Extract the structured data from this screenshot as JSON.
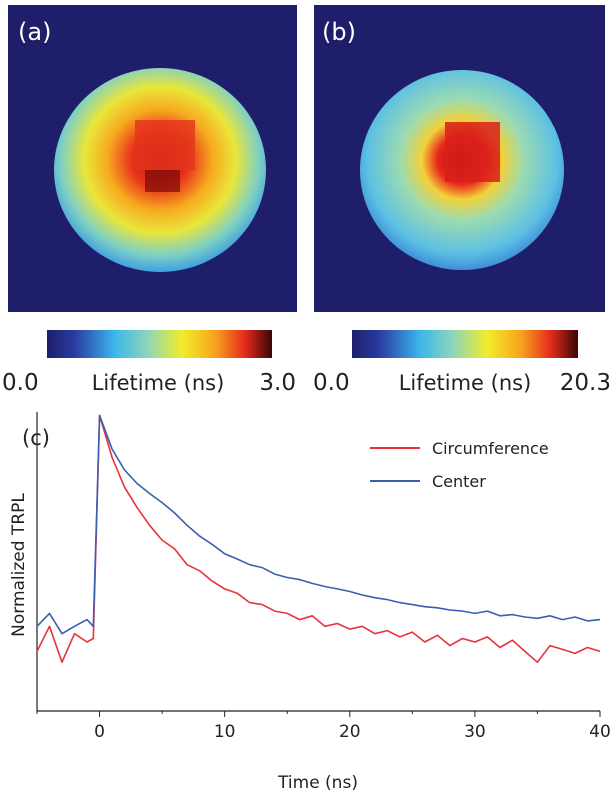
{
  "maps": [
    {
      "label": "(a)"
    },
    {
      "label": "(b)"
    }
  ],
  "colorbars": [
    {
      "min": "0.0",
      "label": "Lifetime (ns)",
      "max": "3.0"
    },
    {
      "min": "0.0",
      "label": "Lifetime (ns)",
      "max": "20.3"
    }
  ],
  "chart_data": {
    "type": "line",
    "panel_label": "(c)",
    "xlabel": "Time (ns)",
    "ylabel": "Normalized TRPL",
    "log_y": true,
    "legend": "upper right",
    "xlim": [
      -5,
      40
    ],
    "ylim": [
      0.015,
      1.05
    ],
    "xticks": [
      0,
      10,
      20,
      30,
      40
    ],
    "xticks_minor": [
      -5,
      5,
      15,
      25,
      35
    ],
    "x": [
      -5,
      -4,
      -3,
      -2,
      -1,
      -0.5,
      0,
      1,
      2,
      3,
      4,
      5,
      6,
      7,
      8,
      9,
      10,
      11,
      12,
      13,
      14,
      15,
      16,
      17,
      18,
      19,
      20,
      21,
      22,
      23,
      24,
      25,
      26,
      27,
      28,
      29,
      30,
      31,
      32,
      33,
      34,
      35,
      36,
      37,
      38,
      39,
      40
    ],
    "series": [
      {
        "name": "Circumference",
        "color": "#e8333a",
        "values": [
          0.035,
          0.05,
          0.03,
          0.045,
          0.04,
          0.042,
          1,
          0.55,
          0.36,
          0.27,
          0.21,
          0.17,
          0.15,
          0.12,
          0.11,
          0.095,
          0.085,
          0.08,
          0.07,
          0.068,
          0.062,
          0.06,
          0.055,
          0.058,
          0.05,
          0.052,
          0.048,
          0.05,
          0.045,
          0.047,
          0.043,
          0.046,
          0.04,
          0.044,
          0.038,
          0.042,
          0.04,
          0.043,
          0.037,
          0.041,
          0.035,
          0.03,
          0.038,
          0.036,
          0.034,
          0.037,
          0.035
        ]
      },
      {
        "name": "Center",
        "color": "#3a5fb0",
        "values": [
          0.05,
          0.06,
          0.045,
          0.05,
          0.055,
          0.05,
          1,
          0.62,
          0.46,
          0.38,
          0.33,
          0.29,
          0.25,
          0.21,
          0.18,
          0.16,
          0.14,
          0.13,
          0.12,
          0.115,
          0.105,
          0.1,
          0.097,
          0.092,
          0.088,
          0.085,
          0.082,
          0.078,
          0.075,
          0.073,
          0.07,
          0.068,
          0.066,
          0.065,
          0.063,
          0.062,
          0.06,
          0.062,
          0.058,
          0.059,
          0.057,
          0.056,
          0.058,
          0.055,
          0.057,
          0.054,
          0.055
        ]
      }
    ]
  }
}
